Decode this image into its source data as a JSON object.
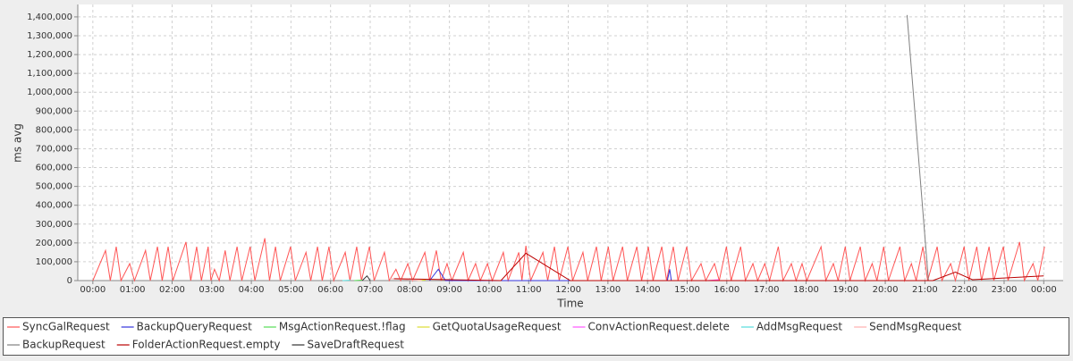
{
  "chart_data": {
    "type": "line",
    "x_label": "Time",
    "y_label": "ms avg",
    "xlim": [
      -0.38,
      24.49
    ],
    "ylim": [
      0,
      1466000
    ],
    "xticks": [
      {
        "value": 0,
        "label": "00:00"
      },
      {
        "value": 1,
        "label": "01:00"
      },
      {
        "value": 2,
        "label": "02:00"
      },
      {
        "value": 3,
        "label": "03:00"
      },
      {
        "value": 4,
        "label": "04:00"
      },
      {
        "value": 5,
        "label": "05:00"
      },
      {
        "value": 6,
        "label": "06:00"
      },
      {
        "value": 7,
        "label": "07:00"
      },
      {
        "value": 8,
        "label": "08:00"
      },
      {
        "value": 9,
        "label": "09:00"
      },
      {
        "value": 10,
        "label": "10:00"
      },
      {
        "value": 11,
        "label": "11:00"
      },
      {
        "value": 12,
        "label": "12:00"
      },
      {
        "value": 13,
        "label": "13:00"
      },
      {
        "value": 14,
        "label": "14:00"
      },
      {
        "value": 15,
        "label": "15:00"
      },
      {
        "value": 16,
        "label": "16:00"
      },
      {
        "value": 17,
        "label": "17:00"
      },
      {
        "value": 18,
        "label": "18:00"
      },
      {
        "value": 19,
        "label": "19:00"
      },
      {
        "value": 20,
        "label": "20:00"
      },
      {
        "value": 21,
        "label": "21:00"
      },
      {
        "value": 22,
        "label": "22:00"
      },
      {
        "value": 23,
        "label": "23:00"
      },
      {
        "value": 24,
        "label": "00:00"
      }
    ],
    "yticks": [
      0,
      {
        "value": 100000,
        "label": "100,000"
      },
      {
        "value": 200000,
        "label": "200,000"
      },
      {
        "value": 300000,
        "label": "300,000"
      },
      {
        "value": 400000,
        "label": "400,000"
      },
      {
        "value": 500000,
        "label": "500,000"
      },
      {
        "value": 600000,
        "label": "600,000"
      },
      {
        "value": 700000,
        "label": "700,000"
      },
      {
        "value": 800000,
        "label": "800,000"
      },
      {
        "value": 900000,
        "label": "900,000"
      },
      {
        "value": 1000000,
        "label": "1,000,000"
      },
      {
        "value": 1100000,
        "label": "1,100,000"
      },
      {
        "value": 1200000,
        "label": "1,200,000"
      },
      {
        "value": 1300000,
        "label": "1,300,000"
      },
      {
        "value": 1400000,
        "label": "1,400,000"
      }
    ],
    "grid": true,
    "series": [
      {
        "name": "SyncGalRequest",
        "color": "#ff5555",
        "x": [
          0.0,
          0.32,
          0.44,
          0.59,
          0.71,
          0.93,
          1.05,
          1.33,
          1.45,
          1.63,
          1.75,
          1.9,
          2.02,
          2.35,
          2.47,
          2.62,
          2.74,
          2.91,
          2.98,
          3.07,
          3.19,
          3.34,
          3.46,
          3.64,
          3.76,
          3.97,
          4.09,
          4.34,
          4.46,
          4.61,
          4.73,
          4.99,
          5.11,
          5.38,
          5.5,
          5.67,
          5.79,
          5.96,
          6.08,
          6.37,
          6.49,
          6.66,
          6.78,
          6.98,
          7.1,
          7.36,
          7.48,
          7.65,
          7.77,
          7.95,
          8.07,
          8.38,
          8.5,
          8.67,
          8.79,
          8.94,
          9.06,
          9.35,
          9.47,
          9.66,
          9.78,
          9.96,
          10.08,
          10.36,
          10.48,
          10.75,
          10.83,
          10.93,
          11.05,
          11.36,
          11.48,
          11.65,
          11.77,
          11.99,
          12.11,
          12.37,
          12.49,
          12.71,
          12.83,
          13.01,
          13.13,
          13.37,
          13.49,
          13.73,
          13.85,
          14.02,
          14.14,
          14.36,
          14.48,
          14.65,
          14.77,
          14.99,
          15.11,
          15.35,
          15.47,
          15.69,
          15.81,
          15.99,
          16.11,
          16.35,
          16.47,
          16.66,
          16.78,
          16.96,
          17.08,
          17.3,
          17.42,
          17.63,
          17.75,
          17.9,
          18.02,
          18.38,
          18.5,
          18.69,
          18.81,
          18.99,
          19.11,
          19.37,
          19.49,
          19.67,
          19.79,
          19.96,
          20.08,
          20.37,
          20.49,
          20.66,
          20.78,
          20.95,
          21.07,
          21.31,
          21.43,
          21.65,
          21.77,
          21.99,
          22.11,
          22.31,
          22.43,
          22.62,
          22.74,
          22.98,
          23.1,
          23.39,
          23.51,
          23.73,
          23.85,
          24.02
        ],
        "values": [
          0,
          160000,
          0,
          180000,
          0,
          90000,
          0,
          160000,
          0,
          180000,
          0,
          180000,
          0,
          205000,
          0,
          180000,
          0,
          180000,
          0,
          60000,
          0,
          160000,
          0,
          180000,
          0,
          180000,
          0,
          225000,
          0,
          180000,
          0,
          180000,
          0,
          150000,
          0,
          180000,
          0,
          180000,
          0,
          150000,
          0,
          180000,
          0,
          180000,
          0,
          150000,
          0,
          60000,
          0,
          90000,
          0,
          150000,
          0,
          160000,
          0,
          90000,
          0,
          150000,
          0,
          90000,
          0,
          90000,
          0,
          150000,
          0,
          150000,
          0,
          185000,
          0,
          150000,
          0,
          180000,
          0,
          180000,
          0,
          150000,
          0,
          180000,
          0,
          180000,
          0,
          180000,
          0,
          180000,
          0,
          180000,
          0,
          180000,
          0,
          180000,
          0,
          180000,
          0,
          90000,
          0,
          90000,
          0,
          180000,
          0,
          180000,
          0,
          90000,
          0,
          90000,
          0,
          180000,
          0,
          90000,
          0,
          90000,
          0,
          180000,
          0,
          90000,
          0,
          180000,
          0,
          180000,
          0,
          90000,
          0,
          180000,
          0,
          180000,
          0,
          90000,
          0,
          180000,
          0,
          180000,
          0,
          90000,
          0,
          180000,
          0,
          180000,
          0,
          180000,
          0,
          180000,
          0,
          205000,
          0,
          90000,
          0,
          180000
        ]
      },
      {
        "name": "BackupQueryRequest",
        "color": "#3333dd",
        "x": [
          8.5,
          8.72,
          8.9,
          14.5,
          14.56,
          14.6
        ],
        "values": [
          0,
          60000,
          0,
          0,
          60000,
          0
        ]
      },
      {
        "name": "MsgActionRequest.!flag",
        "color": "#55dd55",
        "x": [
          6.6,
          6.8
        ],
        "values": [
          0,
          3000
        ]
      },
      {
        "name": "GetQuotaUsageRequest",
        "color": "#dddd33",
        "x": [
          8.2,
          8.4
        ],
        "values": [
          0,
          3000
        ]
      },
      {
        "name": "ConvActionRequest.delete",
        "color": "#ff55ff",
        "x": [
          15.5,
          15.8
        ],
        "values": [
          0,
          5000
        ]
      },
      {
        "name": "AddMsgRequest",
        "color": "#55dddd",
        "x": [
          6.3,
          6.5
        ],
        "values": [
          0,
          2000
        ]
      },
      {
        "name": "SendMsgRequest",
        "color": "#ffafaf",
        "x": [
          7.5,
          8.3
        ],
        "values": [
          10000,
          0
        ]
      },
      {
        "name": "BackupRequest",
        "color": "#808080",
        "x": [
          20.55,
          21.09
        ],
        "values": [
          1410000,
          0
        ]
      },
      {
        "name": "FolderActionRequest.empty",
        "color": "#bb0000",
        "x": [
          7.6,
          10.3,
          10.93,
          12.05,
          21.2,
          21.77,
          22.2,
          24.0
        ],
        "values": [
          10000,
          0,
          145000,
          0,
          0,
          45000,
          5000,
          25000
        ]
      },
      {
        "name": "SaveDraftRequest",
        "color": "#333333",
        "x": [
          6.8,
          6.92,
          7.0
        ],
        "values": [
          0,
          25000,
          0
        ]
      }
    ]
  }
}
